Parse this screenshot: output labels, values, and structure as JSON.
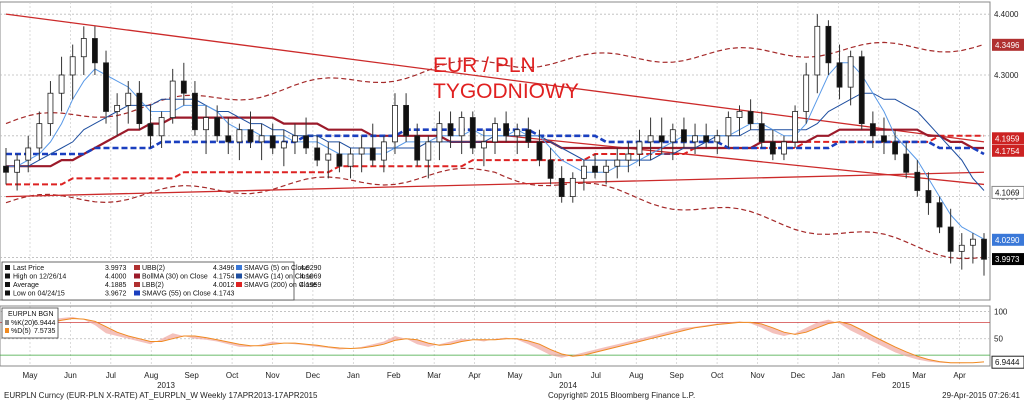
{
  "chart_data": {
    "type": "candlestick",
    "title": "EUR / PLN",
    "subtitle": "TYGODNIOWY",
    "price_axis": {
      "ticks": [
        "4.4000",
        "4.3000",
        "4.2000",
        "4.1000",
        "4.0000"
      ]
    },
    "osc_axis": {
      "ticks": [
        "100",
        "50"
      ]
    },
    "months": [
      "May",
      "Jun",
      "Jul",
      "Aug",
      "Sep",
      "Oct",
      "Nov",
      "Dec",
      "Jan",
      "Feb",
      "Mar",
      "Apr",
      "May",
      "Jun",
      "Jul",
      "Aug",
      "Sep",
      "Oct",
      "Nov",
      "Dec",
      "Jan",
      "Feb",
      "Mar",
      "Apr"
    ],
    "years": [
      "2013",
      "2014",
      "2015"
    ],
    "price_tags": [
      {
        "value": "4.3496",
        "color": "#b03030"
      },
      {
        "value": "4.1959",
        "color": "#cc2222"
      },
      {
        "value": "4.1754",
        "color": "#cc2222"
      },
      {
        "value": "4.1069",
        "color": "#ffffff"
      },
      {
        "value": "4.0290",
        "color": "#3a78d8"
      },
      {
        "value": "3.9973",
        "color": "#000000"
      }
    ],
    "osc_tag": "6.9444",
    "candles": [
      [
        4.15,
        4.18,
        4.12,
        4.14
      ],
      [
        4.14,
        4.17,
        4.11,
        4.16
      ],
      [
        4.16,
        4.2,
        4.14,
        4.18
      ],
      [
        4.18,
        4.24,
        4.16,
        4.22
      ],
      [
        4.22,
        4.29,
        4.2,
        4.27
      ],
      [
        4.27,
        4.33,
        4.24,
        4.3
      ],
      [
        4.3,
        4.35,
        4.26,
        4.33
      ],
      [
        4.33,
        4.38,
        4.3,
        4.36
      ],
      [
        4.36,
        4.38,
        4.3,
        4.32
      ],
      [
        4.32,
        4.34,
        4.22,
        4.24
      ],
      [
        4.24,
        4.27,
        4.2,
        4.25
      ],
      [
        4.25,
        4.29,
        4.22,
        4.27
      ],
      [
        4.27,
        4.29,
        4.21,
        4.22
      ],
      [
        4.22,
        4.25,
        4.18,
        4.2
      ],
      [
        4.2,
        4.24,
        4.18,
        4.23
      ],
      [
        4.23,
        4.31,
        4.22,
        4.29
      ],
      [
        4.29,
        4.32,
        4.25,
        4.27
      ],
      [
        4.27,
        4.29,
        4.2,
        4.21
      ],
      [
        4.21,
        4.25,
        4.17,
        4.23
      ],
      [
        4.23,
        4.25,
        4.19,
        4.2
      ],
      [
        4.2,
        4.23,
        4.17,
        4.19
      ],
      [
        4.19,
        4.22,
        4.16,
        4.21
      ],
      [
        4.21,
        4.24,
        4.18,
        4.19
      ],
      [
        4.19,
        4.22,
        4.16,
        4.2
      ],
      [
        4.2,
        4.22,
        4.17,
        4.18
      ],
      [
        4.18,
        4.21,
        4.15,
        4.19
      ],
      [
        4.19,
        4.22,
        4.17,
        4.2
      ],
      [
        4.2,
        4.23,
        4.17,
        4.18
      ],
      [
        4.18,
        4.2,
        4.15,
        4.16
      ],
      [
        4.16,
        4.19,
        4.13,
        4.17
      ],
      [
        4.17,
        4.19,
        4.14,
        4.15
      ],
      [
        4.15,
        4.18,
        4.13,
        4.17
      ],
      [
        4.17,
        4.2,
        4.14,
        4.18
      ],
      [
        4.18,
        4.22,
        4.15,
        4.16
      ],
      [
        4.16,
        4.2,
        4.14,
        4.19
      ],
      [
        4.19,
        4.27,
        4.17,
        4.25
      ],
      [
        4.25,
        4.27,
        4.19,
        4.2
      ],
      [
        4.2,
        4.22,
        4.15,
        4.16
      ],
      [
        4.16,
        4.2,
        4.13,
        4.19
      ],
      [
        4.19,
        4.24,
        4.16,
        4.22
      ],
      [
        4.22,
        4.24,
        4.18,
        4.2
      ],
      [
        4.2,
        4.24,
        4.17,
        4.23
      ],
      [
        4.23,
        4.24,
        4.17,
        4.18
      ],
      [
        4.18,
        4.21,
        4.15,
        4.19
      ],
      [
        4.19,
        4.23,
        4.17,
        4.22
      ],
      [
        4.22,
        4.24,
        4.19,
        4.2
      ],
      [
        4.2,
        4.22,
        4.17,
        4.21
      ],
      [
        4.21,
        4.23,
        4.18,
        4.19
      ],
      [
        4.19,
        4.21,
        4.15,
        4.16
      ],
      [
        4.16,
        4.18,
        4.12,
        4.13
      ],
      [
        4.13,
        4.15,
        4.09,
        4.1
      ],
      [
        4.1,
        4.14,
        4.09,
        4.13
      ],
      [
        4.13,
        4.16,
        4.11,
        4.15
      ],
      [
        4.15,
        4.17,
        4.13,
        4.14
      ],
      [
        4.14,
        4.16,
        4.12,
        4.15
      ],
      [
        4.15,
        4.18,
        4.13,
        4.16
      ],
      [
        4.16,
        4.19,
        4.14,
        4.17
      ],
      [
        4.17,
        4.21,
        4.15,
        4.19
      ],
      [
        4.19,
        4.23,
        4.16,
        4.2
      ],
      [
        4.2,
        4.23,
        4.17,
        4.19
      ],
      [
        4.19,
        4.22,
        4.16,
        4.21
      ],
      [
        4.21,
        4.23,
        4.18,
        4.19
      ],
      [
        4.19,
        4.22,
        4.17,
        4.2
      ],
      [
        4.2,
        4.22,
        4.18,
        4.19
      ],
      [
        4.19,
        4.21,
        4.17,
        4.2
      ],
      [
        4.2,
        4.24,
        4.18,
        4.23
      ],
      [
        4.23,
        4.25,
        4.2,
        4.24
      ],
      [
        4.24,
        4.26,
        4.21,
        4.22
      ],
      [
        4.22,
        4.24,
        4.18,
        4.19
      ],
      [
        4.19,
        4.21,
        4.16,
        4.17
      ],
      [
        4.17,
        4.2,
        4.16,
        4.19
      ],
      [
        4.19,
        4.25,
        4.18,
        4.24
      ],
      [
        4.24,
        4.32,
        4.22,
        4.3
      ],
      [
        4.3,
        4.4,
        4.27,
        4.38
      ],
      [
        4.38,
        4.39,
        4.3,
        4.32
      ],
      [
        4.32,
        4.35,
        4.26,
        4.28
      ],
      [
        4.28,
        4.34,
        4.25,
        4.33
      ],
      [
        4.33,
        4.34,
        4.21,
        4.22
      ],
      [
        4.22,
        4.24,
        4.18,
        4.2
      ],
      [
        4.2,
        4.23,
        4.17,
        4.19
      ],
      [
        4.19,
        4.21,
        4.16,
        4.17
      ],
      [
        4.17,
        4.19,
        4.13,
        4.14
      ],
      [
        4.14,
        4.16,
        4.1,
        4.11
      ],
      [
        4.11,
        4.14,
        4.07,
        4.09
      ],
      [
        4.09,
        4.1,
        4.04,
        4.05
      ],
      [
        4.05,
        4.08,
        3.99,
        4.01
      ],
      [
        4.01,
        4.04,
        3.98,
        4.02
      ],
      [
        4.02,
        4.04,
        3.99,
        4.03
      ],
      [
        4.03,
        4.04,
        3.97,
        3.997
      ]
    ],
    "lines": {
      "smavg5": [
        4.15,
        4.15,
        4.16,
        4.17,
        4.19,
        4.22,
        4.26,
        4.29,
        4.31,
        4.3,
        4.29,
        4.28,
        4.26,
        4.24,
        4.24,
        4.24,
        4.25,
        4.25,
        4.25,
        4.24,
        4.22,
        4.21,
        4.21,
        4.2,
        4.2,
        4.2,
        4.19,
        4.19,
        4.19,
        4.18,
        4.17,
        4.17,
        4.17,
        4.17,
        4.17,
        4.18,
        4.19,
        4.19,
        4.19,
        4.2,
        4.2,
        4.2,
        4.21,
        4.2,
        4.2,
        4.2,
        4.21,
        4.2,
        4.2,
        4.18,
        4.16,
        4.15,
        4.14,
        4.14,
        4.14,
        4.15,
        4.15,
        4.16,
        4.17,
        4.18,
        4.19,
        4.2,
        4.2,
        4.2,
        4.2,
        4.2,
        4.21,
        4.22,
        4.22,
        4.21,
        4.2,
        4.2,
        4.22,
        4.26,
        4.3,
        4.32,
        4.32,
        4.3,
        4.27,
        4.24,
        4.2,
        4.18,
        4.16,
        4.13,
        4.1,
        4.07,
        4.05,
        4.04,
        4.03
      ],
      "smavg14": [
        4.15,
        4.15,
        4.15,
        4.16,
        4.17,
        4.18,
        4.19,
        4.21,
        4.22,
        4.23,
        4.24,
        4.25,
        4.25,
        4.25,
        4.26,
        4.26,
        4.26,
        4.26,
        4.25,
        4.24,
        4.24,
        4.23,
        4.22,
        4.22,
        4.21,
        4.21,
        4.2,
        4.2,
        4.2,
        4.19,
        4.19,
        4.18,
        4.18,
        4.18,
        4.18,
        4.18,
        4.18,
        4.18,
        4.19,
        4.19,
        4.19,
        4.19,
        4.19,
        4.19,
        4.2,
        4.2,
        4.2,
        4.2,
        4.2,
        4.19,
        4.18,
        4.17,
        4.16,
        4.16,
        4.16,
        4.16,
        4.16,
        4.16,
        4.16,
        4.17,
        4.17,
        4.18,
        4.18,
        4.19,
        4.2,
        4.2,
        4.2,
        4.21,
        4.21,
        4.21,
        4.21,
        4.21,
        4.21,
        4.22,
        4.24,
        4.25,
        4.26,
        4.27,
        4.27,
        4.26,
        4.26,
        4.25,
        4.24,
        4.22,
        4.2,
        4.18,
        4.16,
        4.13,
        4.11
      ],
      "bollma30": [
        4.15,
        4.15,
        4.15,
        4.15,
        4.15,
        4.16,
        4.16,
        4.17,
        4.18,
        4.19,
        4.2,
        4.21,
        4.21,
        4.22,
        4.22,
        4.23,
        4.23,
        4.23,
        4.23,
        4.23,
        4.23,
        4.23,
        4.23,
        4.23,
        4.23,
        4.22,
        4.22,
        4.22,
        4.22,
        4.21,
        4.21,
        4.21,
        4.21,
        4.2,
        4.2,
        4.2,
        4.2,
        4.2,
        4.2,
        4.2,
        4.19,
        4.19,
        4.19,
        4.19,
        4.19,
        4.19,
        4.19,
        4.19,
        4.19,
        4.19,
        4.18,
        4.18,
        4.18,
        4.18,
        4.18,
        4.18,
        4.18,
        4.18,
        4.18,
        4.18,
        4.18,
        4.18,
        4.18,
        4.18,
        4.18,
        4.18,
        4.18,
        4.18,
        4.19,
        4.19,
        4.19,
        4.19,
        4.19,
        4.2,
        4.2,
        4.21,
        4.21,
        4.21,
        4.21,
        4.21,
        4.21,
        4.21,
        4.21,
        4.2,
        4.2,
        4.19,
        4.19,
        4.18,
        4.18
      ],
      "smavg55": [
        4.17,
        4.17,
        4.17,
        4.17,
        4.17,
        4.17,
        4.17,
        4.17,
        4.18,
        4.18,
        4.18,
        4.18,
        4.18,
        4.18,
        4.19,
        4.19,
        4.19,
        4.19,
        4.19,
        4.19,
        4.19,
        4.19,
        4.19,
        4.19,
        4.19,
        4.19,
        4.19,
        4.2,
        4.2,
        4.2,
        4.2,
        4.2,
        4.2,
        4.2,
        4.2,
        4.2,
        4.21,
        4.21,
        4.21,
        4.21,
        4.21,
        4.21,
        4.21,
        4.21,
        4.21,
        4.21,
        4.21,
        4.21,
        4.2,
        4.2,
        4.2,
        4.2,
        4.2,
        4.2,
        4.19,
        4.19,
        4.19,
        4.19,
        4.19,
        4.19,
        4.19,
        4.19,
        4.19,
        4.19,
        4.19,
        4.18,
        4.18,
        4.18,
        4.18,
        4.18,
        4.18,
        4.18,
        4.18,
        4.18,
        4.18,
        4.19,
        4.19,
        4.19,
        4.19,
        4.19,
        4.19,
        4.19,
        4.19,
        4.19,
        4.18,
        4.18,
        4.18,
        4.18,
        4.17
      ],
      "smavg200": [
        4.12,
        4.12,
        4.12,
        4.12,
        4.12,
        4.12,
        4.13,
        4.13,
        4.13,
        4.13,
        4.13,
        4.13,
        4.13,
        4.13,
        4.13,
        4.13,
        4.14,
        4.14,
        4.14,
        4.14,
        4.14,
        4.14,
        4.14,
        4.14,
        4.14,
        4.14,
        4.14,
        4.14,
        4.14,
        4.14,
        4.15,
        4.15,
        4.15,
        4.15,
        4.15,
        4.15,
        4.15,
        4.15,
        4.15,
        4.15,
        4.15,
        4.15,
        4.16,
        4.16,
        4.16,
        4.16,
        4.16,
        4.16,
        4.16,
        4.16,
        4.16,
        4.16,
        4.16,
        4.17,
        4.17,
        4.17,
        4.17,
        4.17,
        4.17,
        4.17,
        4.17,
        4.17,
        4.18,
        4.18,
        4.18,
        4.18,
        4.18,
        4.18,
        4.18,
        4.18,
        4.18,
        4.18,
        4.19,
        4.19,
        4.19,
        4.19,
        4.19,
        4.19,
        4.19,
        4.19,
        4.19,
        4.19,
        4.19,
        4.19,
        4.2,
        4.2,
        4.2,
        4.2,
        4.2
      ]
    },
    "bollinger": {
      "upper_start": 4.22,
      "upper_mid": 4.32,
      "upper_end": 4.35,
      "lower_start": 4.09,
      "lower_mid": 4.14,
      "lower_end": 4.0
    },
    "trendlines": [
      {
        "from": [
          0,
          4.4
        ],
        "to": [
          88,
          4.19
        ]
      },
      {
        "from": [
          0,
          4.1
        ],
        "to": [
          88,
          4.14
        ]
      },
      {
        "from": [
          45,
          4.2
        ],
        "to": [
          88,
          4.12
        ]
      }
    ],
    "stochastic": {
      "k": [
        70,
        72,
        75,
        80,
        85,
        88,
        90,
        85,
        75,
        60,
        55,
        50,
        45,
        40,
        50,
        60,
        55,
        50,
        48,
        45,
        40,
        35,
        35,
        40,
        45,
        42,
        40,
        38,
        35,
        33,
        30,
        32,
        35,
        40,
        45,
        55,
        50,
        40,
        35,
        40,
        45,
        50,
        48,
        45,
        50,
        52,
        48,
        40,
        30,
        20,
        15,
        20,
        25,
        30,
        35,
        40,
        45,
        50,
        55,
        60,
        65,
        70,
        72,
        75,
        78,
        80,
        82,
        78,
        70,
        60,
        55,
        60,
        70,
        80,
        85,
        78,
        65,
        55,
        45,
        35,
        25,
        18,
        12,
        8,
        6,
        5,
        5,
        6,
        6.9444
      ],
      "d": [
        65,
        68,
        70,
        75,
        80,
        84,
        87,
        86,
        82,
        72,
        62,
        55,
        50,
        45,
        45,
        50,
        55,
        55,
        52,
        48,
        44,
        40,
        37,
        37,
        40,
        42,
        42,
        40,
        38,
        35,
        33,
        32,
        33,
        36,
        40,
        47,
        50,
        48,
        42,
        38,
        40,
        45,
        48,
        48,
        48,
        50,
        50,
        46,
        40,
        30,
        22,
        18,
        20,
        25,
        30,
        35,
        40,
        45,
        50,
        55,
        60,
        65,
        70,
        73,
        76,
        78,
        80,
        80,
        77,
        70,
        62,
        58,
        62,
        70,
        78,
        81,
        76,
        66,
        55,
        45,
        35,
        26,
        18,
        12,
        8,
        6,
        6,
        6,
        7.5735
      ]
    },
    "legend_left": [
      {
        "label": "Last Price",
        "value": "3.9973"
      },
      {
        "label": "High on 12/26/14",
        "value": "4.4000"
      },
      {
        "label": "Average",
        "value": "4.1885"
      },
      {
        "label": "Low on 04/24/15",
        "value": "3.9672"
      }
    ],
    "legend_mid": [
      {
        "label": "UBB(2)",
        "value": "4.3496",
        "color": "#b03030"
      },
      {
        "label": "BollMA (30) on Close",
        "value": "4.1754",
        "color": "#9b1a2a"
      },
      {
        "label": "LBB(2)",
        "value": "4.0012",
        "color": "#b03030"
      },
      {
        "label": "SMAVG (55) on Close",
        "value": "4.1743",
        "color": "#1a3fbf"
      }
    ],
    "legend_right": [
      {
        "label": "SMAVG (5) on Close",
        "value": "4.0290",
        "color": "#3a78d8"
      },
      {
        "label": "SMAVG (14) on Close",
        "value": "4.1069",
        "color": "#1f4fa0"
      },
      {
        "label": "SMAVG (200) on Close",
        "value": "4.1959",
        "color": "#dd2222"
      }
    ],
    "osc_legend": {
      "title": "EURPLN BGN",
      "rows": [
        {
          "label": "%K(20)",
          "value": "6.9444"
        },
        {
          "label": "%D(5)",
          "value": "7.5735"
        }
      ]
    }
  },
  "footer": {
    "left": "EURPLN Curncy (EUR-PLN X-RATE) AT_EURPLN_W  Weekly 17APR2013-17APR2015",
    "center": "Copyright© 2015 Bloomberg Finance L.P.",
    "right": "29-Apr-2015 07:26:41"
  }
}
